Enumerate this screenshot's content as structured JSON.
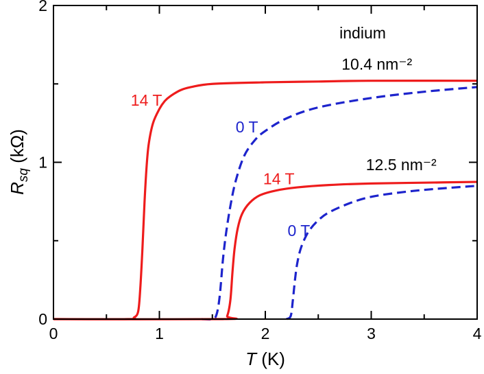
{
  "chart_data": {
    "type": "line",
    "title": "",
    "xlabel": {
      "symbol": "T",
      "unit": "(K)"
    },
    "ylabel": {
      "symbol": "R",
      "subscript": "sq",
      "unit": "(kΩ)"
    },
    "xlim": [
      0,
      4
    ],
    "ylim": [
      0,
      2
    ],
    "x_ticks": [
      "0",
      "1",
      "2",
      "3",
      "4"
    ],
    "y_ticks": [
      "0",
      "1",
      "2"
    ],
    "grid": false,
    "colors": {
      "field_14T": "#ee1c1c",
      "field_0T": "#1d24cc",
      "axis": "#000000"
    },
    "series": [
      {
        "name": "10.4 nm⁻² 14 T",
        "field": "14 T",
        "density": "10.4 nm⁻²",
        "style": "solid",
        "x": [
          0.0,
          0.7,
          0.76,
          0.8,
          0.82,
          0.84,
          0.86,
          0.88,
          0.9,
          0.94,
          1.0,
          1.05,
          1.1,
          1.2,
          1.3,
          1.5,
          2.0,
          2.5,
          3.0,
          4.0
        ],
        "y": [
          0.0,
          0.0,
          0.01,
          0.05,
          0.2,
          0.45,
          0.75,
          0.98,
          1.12,
          1.25,
          1.34,
          1.39,
          1.42,
          1.46,
          1.48,
          1.5,
          1.51,
          1.515,
          1.52,
          1.52
        ]
      },
      {
        "name": "10.4 nm⁻² 0 T",
        "field": "0 T",
        "density": "10.4 nm⁻²",
        "style": "dashed",
        "x": [
          1.4,
          1.5,
          1.54,
          1.57,
          1.6,
          1.63,
          1.67,
          1.72,
          1.8,
          1.9,
          2.0,
          2.2,
          2.5,
          3.0,
          3.5,
          4.0
        ],
        "y": [
          0.0,
          0.0,
          0.03,
          0.15,
          0.38,
          0.55,
          0.72,
          0.88,
          1.04,
          1.14,
          1.2,
          1.28,
          1.35,
          1.41,
          1.45,
          1.48
        ]
      },
      {
        "name": "12.5 nm⁻² 14 T",
        "field": "14 T",
        "density": "12.5 nm⁻²",
        "style": "solid",
        "x": [
          0.0,
          1.6,
          1.64,
          1.67,
          1.69,
          1.71,
          1.74,
          1.78,
          1.85,
          1.95,
          2.1,
          2.3,
          2.6,
          3.0,
          3.5,
          4.0
        ],
        "y": [
          0.0,
          0.0,
          0.02,
          0.12,
          0.3,
          0.45,
          0.58,
          0.67,
          0.74,
          0.79,
          0.82,
          0.84,
          0.855,
          0.865,
          0.87,
          0.875
        ]
      },
      {
        "name": "12.5 nm⁻² 0 T",
        "field": "0 T",
        "density": "12.5 nm⁻²",
        "style": "dashed",
        "x": [
          2.2,
          2.24,
          2.26,
          2.28,
          2.3,
          2.33,
          2.37,
          2.42,
          2.5,
          2.6,
          2.8,
          3.0,
          3.3,
          3.6,
          4.0
        ],
        "y": [
          0.0,
          0.02,
          0.12,
          0.25,
          0.35,
          0.44,
          0.51,
          0.57,
          0.63,
          0.68,
          0.74,
          0.78,
          0.81,
          0.83,
          0.85
        ]
      }
    ],
    "annotations": [
      {
        "id": "material",
        "text": "indium",
        "color": "#000000",
        "x": 2.7,
        "y": 1.79
      },
      {
        "id": "density-1",
        "text": "10.4 nm⁻²",
        "color": "#000000",
        "x": 2.72,
        "y": 1.59
      },
      {
        "id": "density-2",
        "text": "12.5 nm⁻²",
        "color": "#000000",
        "x": 2.95,
        "y": 0.95
      },
      {
        "id": "label-14T-a",
        "text": "14 T",
        "color": "#ee1c1c",
        "x": 0.73,
        "y": 1.36
      },
      {
        "id": "label-0T-a",
        "text": "0 T",
        "color": "#1d24cc",
        "x": 1.72,
        "y": 1.19
      },
      {
        "id": "label-14T-b",
        "text": "14 T",
        "color": "#ee1c1c",
        "x": 1.98,
        "y": 0.86
      },
      {
        "id": "label-0T-b",
        "text": "0 T",
        "color": "#1d24cc",
        "x": 2.21,
        "y": 0.53
      }
    ]
  }
}
